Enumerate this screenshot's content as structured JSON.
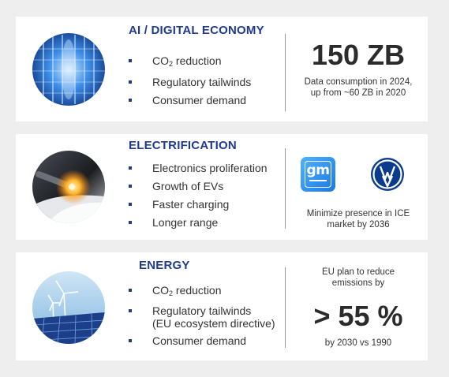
{
  "sections": {
    "ai": {
      "title": "AI / DIGITAL ECONOMY",
      "bullets": [
        {
          "main": "CO",
          "sub": "2",
          "rest": " reduction"
        },
        {
          "main": "Regulatory tailwinds"
        },
        {
          "main": "Consumer demand"
        }
      ],
      "metric": "150 ZB",
      "note": [
        "Data consumption in 2024,",
        "up from ~60 ZB in 2020"
      ],
      "image_icon": "data-center-icon"
    },
    "electrification": {
      "title": "ELECTRIFICATION",
      "bullets": [
        {
          "main": "Electronics proliferation"
        },
        {
          "main": "Growth of EVs"
        },
        {
          "main": "Faster charging"
        },
        {
          "main": "Longer range"
        }
      ],
      "logos": [
        {
          "icon": "gm-logo",
          "text": "gm"
        },
        {
          "icon": "vw-logo"
        }
      ],
      "note": [
        "Minimize presence in ICE",
        "market by 2036"
      ],
      "image_icon": "ev-charging-icon"
    },
    "energy": {
      "title": "ENERGY",
      "bullets": [
        {
          "main": "CO",
          "sub": "2",
          "rest": " reduction"
        },
        {
          "main": "Regulatory tailwinds",
          "line2": "(EU ecosystem directive)"
        },
        {
          "main": "Consumer demand"
        }
      ],
      "note_top": [
        "EU plan to reduce",
        "emissions by"
      ],
      "metric": "> 55 %",
      "note_bottom": "by 2030 vs 1990",
      "image_icon": "wind-solar-icon"
    }
  },
  "colors": {
    "accent": "#1f3a93",
    "background": "#eeeeee",
    "card": "#ffffff",
    "text": "#333333"
  }
}
